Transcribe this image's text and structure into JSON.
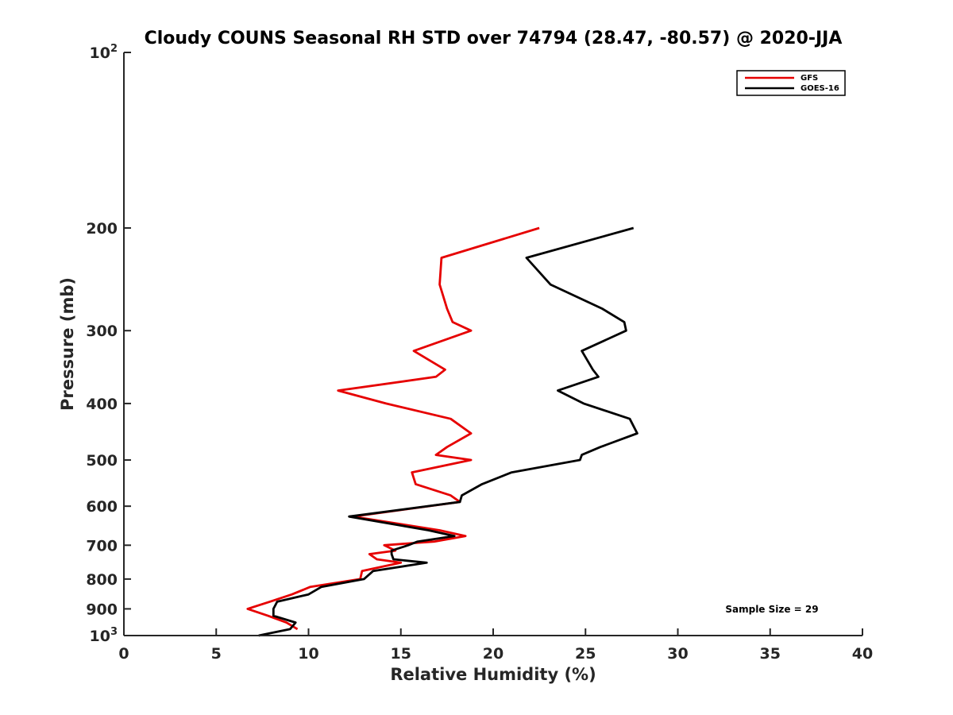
{
  "chart_data": {
    "type": "line",
    "title": "Cloudy COUNS Seasonal RH STD over 74794 (28.47, -80.57) @ 2020-JJA",
    "xlabel": "Relative Humidity (%)",
    "ylabel": "Pressure (mb)",
    "xlim": [
      0,
      40
    ],
    "ylim": [
      100,
      1000
    ],
    "yscale": "log",
    "y_reversed": true,
    "xticks": [
      0,
      5,
      10,
      15,
      20,
      25,
      30,
      35,
      40
    ],
    "yticks": [
      {
        "value": 100,
        "label": "",
        "base": "10",
        "exp": "2"
      },
      {
        "value": 200,
        "label": "200"
      },
      {
        "value": 300,
        "label": "300"
      },
      {
        "value": 400,
        "label": "400"
      },
      {
        "value": 500,
        "label": "500"
      },
      {
        "value": 600,
        "label": "600"
      },
      {
        "value": 700,
        "label": "700"
      },
      {
        "value": 800,
        "label": "800"
      },
      {
        "value": 900,
        "label": "900"
      },
      {
        "value": 1000,
        "label": "",
        "base": "10",
        "exp": "3"
      }
    ],
    "legend_position": "top-right",
    "annotation": "Sample Size = 29",
    "series": [
      {
        "name": "GFS",
        "color": "#e60000",
        "points": [
          [
            22.5,
            200
          ],
          [
            17.2,
            225
          ],
          [
            17.1,
            250
          ],
          [
            17.5,
            275
          ],
          [
            17.8,
            290
          ],
          [
            18.8,
            300
          ],
          [
            15.7,
            325
          ],
          [
            17.4,
            350
          ],
          [
            16.9,
            360
          ],
          [
            11.6,
            380
          ],
          [
            14.2,
            400
          ],
          [
            17.7,
            425
          ],
          [
            18.8,
            450
          ],
          [
            17.5,
            475
          ],
          [
            16.9,
            490
          ],
          [
            18.8,
            500
          ],
          [
            15.6,
            525
          ],
          [
            15.8,
            550
          ],
          [
            17.7,
            575
          ],
          [
            18.2,
            590
          ],
          [
            12.4,
            625
          ],
          [
            17.1,
            660
          ],
          [
            18.5,
            675
          ],
          [
            16.8,
            690
          ],
          [
            14.1,
            700
          ],
          [
            14.7,
            715
          ],
          [
            13.3,
            725
          ],
          [
            13.7,
            740
          ],
          [
            15.0,
            750
          ],
          [
            12.9,
            775
          ],
          [
            12.8,
            800
          ],
          [
            10.1,
            825
          ],
          [
            9.1,
            850
          ],
          [
            7.9,
            875
          ],
          [
            6.7,
            900
          ],
          [
            7.8,
            925
          ],
          [
            8.8,
            950
          ],
          [
            9.4,
            975
          ]
        ]
      },
      {
        "name": "GOES-16",
        "color": "#000000",
        "points": [
          [
            27.6,
            200
          ],
          [
            21.8,
            225
          ],
          [
            23.1,
            250
          ],
          [
            25.9,
            275
          ],
          [
            27.1,
            290
          ],
          [
            27.2,
            300
          ],
          [
            24.8,
            325
          ],
          [
            25.4,
            350
          ],
          [
            25.7,
            360
          ],
          [
            23.5,
            380
          ],
          [
            24.9,
            400
          ],
          [
            27.4,
            425
          ],
          [
            27.8,
            450
          ],
          [
            25.8,
            475
          ],
          [
            24.8,
            490
          ],
          [
            24.7,
            500
          ],
          [
            21.0,
            525
          ],
          [
            19.4,
            550
          ],
          [
            18.3,
            575
          ],
          [
            18.2,
            590
          ],
          [
            12.2,
            625
          ],
          [
            16.5,
            660
          ],
          [
            17.9,
            675
          ],
          [
            15.9,
            690
          ],
          [
            15.4,
            700
          ],
          [
            14.5,
            715
          ],
          [
            14.5,
            725
          ],
          [
            14.6,
            740
          ],
          [
            16.4,
            750
          ],
          [
            13.5,
            775
          ],
          [
            13.0,
            800
          ],
          [
            10.7,
            825
          ],
          [
            10.0,
            850
          ],
          [
            8.3,
            875
          ],
          [
            8.1,
            900
          ],
          [
            8.1,
            925
          ],
          [
            9.3,
            950
          ],
          [
            9.0,
            975
          ],
          [
            7.3,
            1000
          ]
        ]
      }
    ]
  }
}
